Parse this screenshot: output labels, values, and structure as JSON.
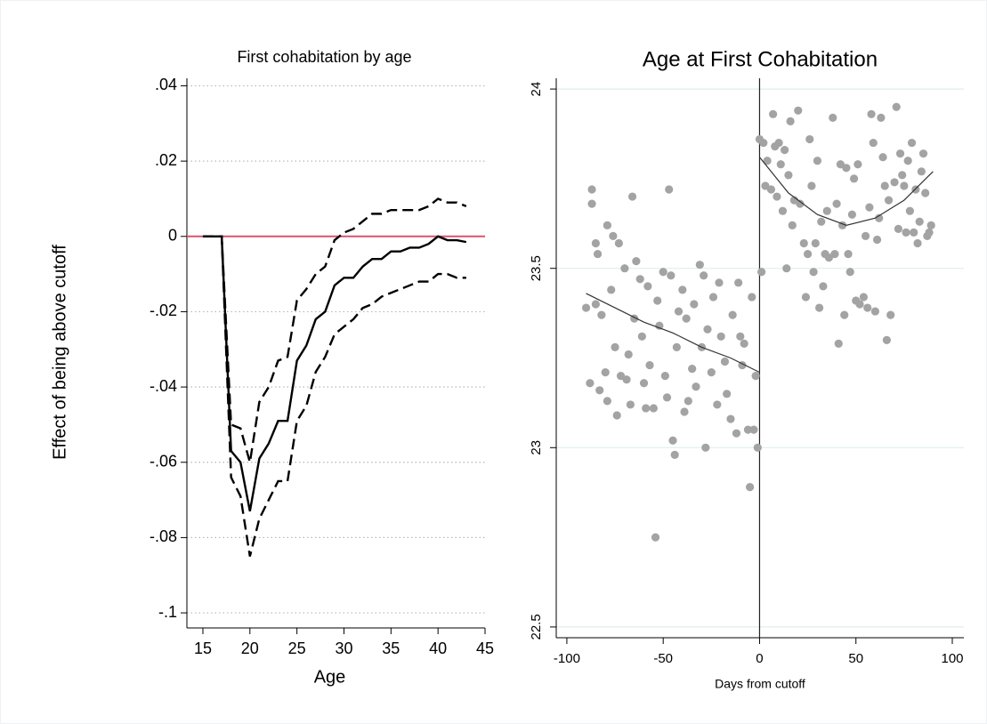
{
  "chart_data": [
    {
      "type": "line",
      "title": "First cohabitation by age",
      "x_label": "Age",
      "y_label": "Effect of being above cutoff",
      "x": [
        15,
        16,
        17,
        18,
        19,
        20,
        21,
        22,
        23,
        24,
        25,
        26,
        27,
        28,
        29,
        30,
        31,
        32,
        33,
        34,
        35,
        36,
        37,
        38,
        39,
        40,
        41,
        42,
        43
      ],
      "series": [
        {
          "color": "#000000",
          "dash": false,
          "values": [
            0,
            0,
            0,
            -0.057,
            -0.06,
            -0.073,
            -0.059,
            -0.055,
            -0.049,
            -0.049,
            -0.033,
            -0.029,
            -0.022,
            -0.02,
            -0.013,
            -0.011,
            -0.011,
            -0.008,
            -0.006,
            -0.006,
            -0.004,
            -0.004,
            -0.003,
            -0.003,
            -0.002,
            0,
            -0.001,
            -0.001,
            -0.0015
          ]
        },
        {
          "color": "#000000",
          "dash": true,
          "values": [
            0,
            0,
            0,
            -0.05,
            -0.051,
            -0.06,
            -0.044,
            -0.04,
            -0.033,
            -0.032,
            -0.017,
            -0.014,
            -0.01,
            -0.008,
            -0.001,
            0.001,
            0.002,
            0.004,
            0.006,
            0.006,
            0.007,
            0.007,
            0.007,
            0.007,
            0.008,
            0.01,
            0.009,
            0.009,
            0.008
          ]
        },
        {
          "color": "#000000",
          "dash": true,
          "values": [
            0,
            0,
            0,
            -0.064,
            -0.069,
            -0.085,
            -0.075,
            -0.07,
            -0.065,
            -0.065,
            -0.049,
            -0.045,
            -0.036,
            -0.032,
            -0.026,
            -0.024,
            -0.022,
            -0.019,
            -0.018,
            -0.016,
            -0.015,
            -0.014,
            -0.013,
            -0.012,
            -0.012,
            -0.01,
            -0.01,
            -0.011,
            -0.011
          ]
        }
      ],
      "hline": {
        "value": 0,
        "color": "#d9536f"
      },
      "xlim": [
        13.3,
        45
      ],
      "xticks": [
        15,
        20,
        25,
        30,
        35,
        40,
        45
      ],
      "ylim": [
        -0.104,
        0.042
      ],
      "yticks": [
        {
          "value": 0.04,
          "label": ".04"
        },
        {
          "value": 0.02,
          "label": ".02"
        },
        0,
        {
          "value": -0.02,
          "label": "-.02"
        },
        {
          "value": -0.04,
          "label": "-.04"
        },
        {
          "value": -0.06,
          "label": "-.06"
        },
        {
          "value": -0.08,
          "label": "-.08"
        },
        {
          "value": -0.1,
          "label": "-.1"
        }
      ],
      "grid": true,
      "grid_color": "#b8b8b8",
      "grid_dash": true
    },
    {
      "type": "scatter",
      "title": "Age at First Cohabitation",
      "x_label": "Days from cutoff",
      "series": [
        {
          "type": "scatter",
          "color": "#a3a3a3",
          "x": [
            -90,
            -88,
            -87,
            -87,
            -85,
            -85,
            -84,
            -83,
            -82,
            -80,
            -79,
            -79,
            -77,
            -76,
            -75,
            -74,
            -73,
            -72,
            -70,
            -69,
            -68,
            -67,
            -66,
            -65,
            -64,
            -62,
            -61,
            -60,
            -59,
            -58,
            -57,
            -55,
            -54,
            -53,
            -52,
            -50,
            -49,
            -48,
            -47,
            -46,
            -45,
            -44,
            -43,
            -42,
            -40,
            -39,
            -38,
            -37,
            -35,
            -34,
            -33,
            -31,
            -30,
            -29,
            -28,
            -27,
            -25,
            -24,
            -22,
            -21,
            -20,
            -18,
            -17,
            -15,
            -14,
            -12,
            -11,
            -10,
            -9,
            -8,
            -6,
            -5,
            -4,
            -3,
            -2,
            -1,
            0,
            1,
            2,
            3,
            4,
            6,
            7,
            8,
            9,
            10,
            11,
            12,
            13,
            14,
            15,
            16,
            17,
            18,
            20,
            21,
            23,
            24,
            25,
            26,
            27,
            28,
            29,
            30,
            31,
            32,
            33,
            34,
            35,
            36,
            38,
            39,
            40,
            41,
            42,
            43,
            44,
            45,
            46,
            47,
            48,
            49,
            50,
            51,
            52,
            54,
            55,
            56,
            57,
            58,
            59,
            60,
            61,
            62,
            63,
            64,
            65,
            66,
            67,
            68,
            70,
            71,
            72,
            73,
            74,
            75,
            76,
            77,
            78,
            79,
            80,
            81,
            82,
            83,
            84,
            85,
            86,
            87,
            88,
            89
          ],
          "values": [
            23.39,
            23.18,
            23.72,
            23.68,
            23.57,
            23.4,
            23.54,
            23.16,
            23.37,
            23.21,
            23.62,
            23.13,
            23.44,
            23.59,
            23.28,
            23.09,
            23.57,
            23.2,
            23.5,
            23.19,
            23.26,
            23.12,
            23.7,
            23.36,
            23.52,
            23.47,
            23.31,
            23.18,
            23.11,
            23.45,
            23.23,
            23.11,
            22.75,
            23.41,
            23.34,
            23.49,
            23.2,
            23.14,
            23.72,
            23.48,
            23.02,
            22.98,
            23.28,
            23.38,
            23.44,
            23.1,
            23.36,
            23.13,
            23.22,
            23.4,
            23.17,
            23.51,
            23.28,
            23.48,
            23.0,
            23.33,
            23.21,
            23.42,
            23.12,
            23.46,
            23.31,
            23.24,
            23.15,
            23.08,
            23.37,
            23.04,
            23.46,
            23.31,
            23.23,
            23.29,
            23.05,
            22.89,
            23.42,
            23.05,
            23.2,
            23.0,
            23.86,
            23.49,
            23.85,
            23.73,
            23.8,
            23.72,
            23.93,
            23.84,
            23.7,
            23.85,
            23.79,
            23.66,
            23.83,
            23.5,
            23.76,
            23.91,
            23.62,
            23.69,
            23.94,
            23.68,
            23.57,
            23.42,
            23.54,
            23.86,
            23.73,
            23.49,
            23.57,
            23.8,
            23.39,
            23.63,
            23.45,
            23.54,
            23.66,
            23.53,
            23.92,
            23.54,
            23.68,
            23.29,
            23.79,
            23.62,
            23.37,
            23.78,
            23.54,
            23.49,
            23.65,
            23.75,
            23.41,
            23.79,
            23.4,
            23.42,
            23.59,
            23.39,
            23.67,
            23.93,
            23.85,
            23.38,
            23.58,
            23.64,
            23.92,
            23.81,
            23.73,
            23.3,
            23.69,
            23.37,
            23.74,
            23.95,
            23.61,
            23.82,
            23.76,
            23.73,
            23.6,
            23.8,
            23.66,
            23.85,
            23.6,
            23.72,
            23.57,
            23.63,
            23.77,
            23.82,
            23.71,
            23.59,
            23.6,
            23.62
          ]
        },
        {
          "type": "line",
          "color": "#333333",
          "dash": false,
          "x": [
            -90,
            -75,
            -60,
            -45,
            -30,
            -15,
            0
          ],
          "values": [
            23.43,
            23.39,
            23.35,
            23.32,
            23.28,
            23.25,
            23.21
          ]
        },
        {
          "type": "line",
          "color": "#333333",
          "dash": false,
          "x": [
            0,
            15,
            30,
            45,
            60,
            75,
            90
          ],
          "values": [
            23.81,
            23.71,
            23.65,
            23.62,
            23.64,
            23.69,
            23.77
          ]
        }
      ],
      "vline": 0,
      "xlim": [
        -105.5,
        106
      ],
      "xticks": [
        -100,
        -50,
        0,
        50,
        100
      ],
      "ylim": [
        22.47,
        24.03
      ],
      "yticks": [
        22.5,
        23,
        23.5,
        24
      ],
      "grid": true,
      "grid_color": "#dcefef",
      "grid_dash": false
    }
  ]
}
